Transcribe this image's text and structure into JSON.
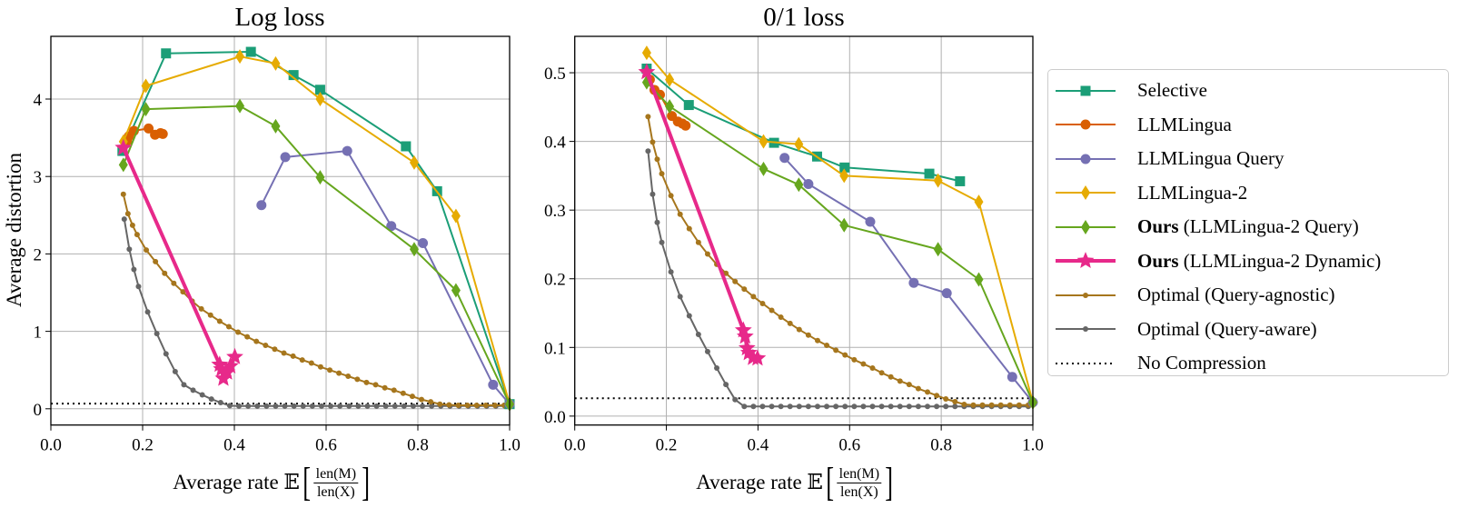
{
  "figure": {
    "ylabel": "Average distortion",
    "xlabel": {
      "prefix": "Average rate 𝔼",
      "numerator": "len(M)",
      "denominator": "len(X)"
    }
  },
  "legend": {
    "placement": "right, outside",
    "items": [
      {
        "key": "selective",
        "label_bold": "",
        "label": "Selective",
        "color": "#1b9e77",
        "marker": "square"
      },
      {
        "key": "llmlingua",
        "label_bold": "",
        "label": "LLMLingua",
        "color": "#d95f02",
        "marker": "circle"
      },
      {
        "key": "llmlingua_query",
        "label_bold": "",
        "label": "LLMLingua Query",
        "color": "#7570b3",
        "marker": "circle"
      },
      {
        "key": "llmlingua2",
        "label_bold": "",
        "label": "LLMLingua-2",
        "color": "#e6ab02",
        "marker": "diamond"
      },
      {
        "key": "ours_query",
        "label_bold": "Ours",
        "label": " (LLMLingua-2 Query)",
        "color": "#66a61e",
        "marker": "diamond"
      },
      {
        "key": "ours_dynamic",
        "label_bold": "Ours",
        "label": " (LLMLingua-2 Dynamic)",
        "color": "#e7298a",
        "marker": "star"
      },
      {
        "key": "opt_agnostic",
        "label_bold": "",
        "label": "Optimal (Query-agnostic)",
        "color": "#a6761d",
        "marker": "dot"
      },
      {
        "key": "opt_aware",
        "label_bold": "",
        "label": "Optimal (Query-aware)",
        "color": "#666666",
        "marker": "dot"
      },
      {
        "key": "no_compression",
        "label_bold": "",
        "label": "No Compression",
        "color": "#000000",
        "marker": "dotted-line"
      }
    ]
  },
  "chart_data": [
    {
      "type": "line",
      "title": "Log loss",
      "xlabel": "Average rate 𝔼[len(M)/len(X)]",
      "ylabel": "Average distortion",
      "xlim": [
        0,
        1
      ],
      "ylim": [
        -0.21,
        4.81
      ],
      "grid": true,
      "xticks": [
        "0.0",
        "0.2",
        "0.4",
        "0.6",
        "0.8",
        "1.0"
      ],
      "yticks": [
        "0",
        "1",
        "2",
        "3",
        "4"
      ],
      "no_compression": 0.067,
      "series": {
        "selective": [
          [
            0.156,
            3.33
          ],
          [
            0.251,
            4.59
          ],
          [
            0.436,
            4.61
          ],
          [
            0.529,
            4.31
          ],
          [
            0.587,
            4.12
          ],
          [
            0.774,
            3.39
          ],
          [
            0.842,
            2.81
          ],
          [
            1.0,
            0.06
          ]
        ],
        "llmlingua": [
          [
            0.166,
            3.46
          ],
          [
            0.17,
            3.52
          ],
          [
            0.181,
            3.59
          ],
          [
            0.213,
            3.62
          ],
          [
            0.227,
            3.54
          ],
          [
            0.239,
            3.56
          ],
          [
            0.244,
            3.55
          ]
        ],
        "llmlingua_query": [
          [
            0.459,
            2.63
          ],
          [
            0.511,
            3.25
          ],
          [
            0.646,
            3.33
          ],
          [
            0.742,
            2.36
          ],
          [
            0.811,
            2.14
          ],
          [
            0.964,
            0.31
          ],
          [
            1.0,
            0.06
          ]
        ],
        "llmlingua2": [
          [
            0.158,
            3.45
          ],
          [
            0.207,
            4.17
          ],
          [
            0.412,
            4.55
          ],
          [
            0.49,
            4.46
          ],
          [
            0.587,
            4.0
          ],
          [
            0.792,
            3.18
          ],
          [
            0.883,
            2.49
          ],
          [
            1.0,
            0.06
          ]
        ],
        "ours_query": [
          [
            0.158,
            3.15
          ],
          [
            0.207,
            3.87
          ],
          [
            0.412,
            3.91
          ],
          [
            0.49,
            3.65
          ],
          [
            0.587,
            2.99
          ],
          [
            0.792,
            2.06
          ],
          [
            0.883,
            1.53
          ],
          [
            1.0,
            0.06
          ]
        ],
        "ours_dynamic": [
          [
            0.158,
            3.37
          ],
          [
            0.368,
            0.57
          ],
          [
            0.372,
            0.51
          ],
          [
            0.376,
            0.39
          ],
          [
            0.384,
            0.47
          ],
          [
            0.391,
            0.55
          ],
          [
            0.401,
            0.67
          ]
        ],
        "opt_agnostic": [
          [
            0.158,
            2.77
          ],
          [
            0.168,
            2.52
          ],
          [
            0.178,
            2.37
          ],
          [
            0.188,
            2.25
          ],
          [
            0.208,
            2.05
          ],
          [
            0.228,
            1.9
          ],
          [
            0.248,
            1.75
          ],
          [
            0.268,
            1.62
          ],
          [
            0.288,
            1.51
          ],
          [
            0.308,
            1.39
          ],
          [
            0.328,
            1.29
          ],
          [
            0.348,
            1.21
          ],
          [
            0.368,
            1.13
          ],
          [
            0.388,
            1.06
          ],
          [
            0.408,
            0.99
          ],
          [
            0.428,
            0.93
          ],
          [
            0.448,
            0.87
          ],
          [
            0.468,
            0.82
          ],
          [
            0.488,
            0.77
          ],
          [
            0.508,
            0.72
          ],
          [
            0.528,
            0.68
          ],
          [
            0.548,
            0.63
          ],
          [
            0.568,
            0.59
          ],
          [
            0.588,
            0.54
          ],
          [
            0.608,
            0.5
          ],
          [
            0.628,
            0.46
          ],
          [
            0.648,
            0.42
          ],
          [
            0.668,
            0.38
          ],
          [
            0.688,
            0.34
          ],
          [
            0.708,
            0.31
          ],
          [
            0.728,
            0.27
          ],
          [
            0.748,
            0.24
          ],
          [
            0.768,
            0.2
          ],
          [
            0.788,
            0.16
          ],
          [
            0.808,
            0.12
          ],
          [
            0.828,
            0.09
          ],
          [
            0.848,
            0.06
          ],
          [
            0.868,
            0.05
          ],
          [
            0.888,
            0.045
          ],
          [
            0.908,
            0.045
          ],
          [
            0.928,
            0.045
          ],
          [
            0.948,
            0.045
          ],
          [
            0.968,
            0.045
          ],
          [
            0.988,
            0.045
          ],
          [
            1.0,
            0.045
          ]
        ],
        "opt_aware": [
          [
            0.16,
            2.45
          ],
          [
            0.171,
            2.06
          ],
          [
            0.181,
            1.8
          ],
          [
            0.191,
            1.58
          ],
          [
            0.211,
            1.25
          ],
          [
            0.231,
            0.97
          ],
          [
            0.251,
            0.71
          ],
          [
            0.271,
            0.48
          ],
          [
            0.29,
            0.31
          ],
          [
            0.31,
            0.24
          ],
          [
            0.33,
            0.18
          ],
          [
            0.35,
            0.125
          ],
          [
            0.37,
            0.08
          ],
          [
            0.39,
            0.04
          ],
          [
            0.41,
            0.035
          ],
          [
            0.43,
            0.035
          ],
          [
            0.45,
            0.035
          ],
          [
            0.47,
            0.035
          ],
          [
            0.49,
            0.035
          ],
          [
            0.51,
            0.035
          ],
          [
            0.53,
            0.035
          ],
          [
            0.55,
            0.035
          ],
          [
            0.57,
            0.035
          ],
          [
            0.59,
            0.035
          ],
          [
            0.61,
            0.035
          ],
          [
            0.63,
            0.035
          ],
          [
            0.65,
            0.035
          ],
          [
            0.67,
            0.035
          ],
          [
            0.69,
            0.035
          ],
          [
            0.71,
            0.035
          ],
          [
            0.73,
            0.035
          ],
          [
            0.75,
            0.035
          ],
          [
            0.77,
            0.035
          ],
          [
            0.79,
            0.035
          ],
          [
            0.81,
            0.035
          ],
          [
            0.83,
            0.035
          ],
          [
            0.85,
            0.035
          ],
          [
            0.87,
            0.035
          ],
          [
            0.89,
            0.035
          ],
          [
            0.91,
            0.035
          ],
          [
            0.93,
            0.035
          ],
          [
            0.95,
            0.035
          ],
          [
            0.97,
            0.035
          ],
          [
            0.99,
            0.035
          ]
        ]
      }
    },
    {
      "type": "line",
      "title": "0/1 loss",
      "xlabel": "Average rate 𝔼[len(M)/len(X)]",
      "ylabel": "",
      "xlim": [
        0,
        1
      ],
      "ylim": [
        -0.013,
        0.553
      ],
      "grid": true,
      "xticks": [
        "0.0",
        "0.2",
        "0.4",
        "0.6",
        "0.8",
        "1.0"
      ],
      "yticks": [
        "0.0",
        "0.1",
        "0.2",
        "0.3",
        "0.4",
        "0.5"
      ],
      "no_compression": 0.026,
      "series": {
        "selective": [
          [
            0.157,
            0.506
          ],
          [
            0.249,
            0.453
          ],
          [
            0.435,
            0.398
          ],
          [
            0.529,
            0.378
          ],
          [
            0.589,
            0.362
          ],
          [
            0.774,
            0.353
          ],
          [
            0.841,
            0.342
          ]
        ],
        "llmlingua": [
          [
            0.164,
            0.49
          ],
          [
            0.174,
            0.475
          ],
          [
            0.186,
            0.468
          ],
          [
            0.212,
            0.437
          ],
          [
            0.225,
            0.429
          ],
          [
            0.235,
            0.426
          ],
          [
            0.242,
            0.423
          ]
        ],
        "llmlingua_query": [
          [
            0.458,
            0.376
          ],
          [
            0.51,
            0.338
          ],
          [
            0.645,
            0.283
          ],
          [
            0.74,
            0.194
          ],
          [
            0.812,
            0.179
          ],
          [
            0.955,
            0.057
          ],
          [
            1.0,
            0.02
          ]
        ],
        "llmlingua2": [
          [
            0.157,
            0.529
          ],
          [
            0.207,
            0.49
          ],
          [
            0.412,
            0.4
          ],
          [
            0.489,
            0.396
          ],
          [
            0.588,
            0.35
          ],
          [
            0.793,
            0.343
          ],
          [
            0.882,
            0.312
          ],
          [
            1.0,
            0.02
          ]
        ],
        "ours_query": [
          [
            0.157,
            0.486
          ],
          [
            0.207,
            0.451
          ],
          [
            0.412,
            0.36
          ],
          [
            0.489,
            0.337
          ],
          [
            0.588,
            0.278
          ],
          [
            0.793,
            0.243
          ],
          [
            0.882,
            0.199
          ],
          [
            1.0,
            0.02
          ]
        ],
        "ours_dynamic": [
          [
            0.157,
            0.501
          ],
          [
            0.368,
            0.125
          ],
          [
            0.372,
            0.116
          ],
          [
            0.376,
            0.099
          ],
          [
            0.38,
            0.092
          ],
          [
            0.389,
            0.085
          ],
          [
            0.399,
            0.084
          ]
        ],
        "opt_agnostic": [
          [
            0.16,
            0.436
          ],
          [
            0.17,
            0.399
          ],
          [
            0.18,
            0.374
          ],
          [
            0.19,
            0.353
          ],
          [
            0.21,
            0.321
          ],
          [
            0.23,
            0.294
          ],
          [
            0.25,
            0.273
          ],
          [
            0.27,
            0.253
          ],
          [
            0.29,
            0.236
          ],
          [
            0.31,
            0.221
          ],
          [
            0.33,
            0.208
          ],
          [
            0.35,
            0.196
          ],
          [
            0.37,
            0.185
          ],
          [
            0.39,
            0.174
          ],
          [
            0.41,
            0.164
          ],
          [
            0.43,
            0.154
          ],
          [
            0.45,
            0.144
          ],
          [
            0.47,
            0.135
          ],
          [
            0.49,
            0.126
          ],
          [
            0.51,
            0.118
          ],
          [
            0.53,
            0.11
          ],
          [
            0.55,
            0.103
          ],
          [
            0.57,
            0.096
          ],
          [
            0.59,
            0.089
          ],
          [
            0.61,
            0.082
          ],
          [
            0.63,
            0.076
          ],
          [
            0.65,
            0.07
          ],
          [
            0.67,
            0.063
          ],
          [
            0.69,
            0.057
          ],
          [
            0.71,
            0.051
          ],
          [
            0.73,
            0.046
          ],
          [
            0.75,
            0.04
          ],
          [
            0.77,
            0.035
          ],
          [
            0.79,
            0.03
          ],
          [
            0.81,
            0.025
          ],
          [
            0.83,
            0.021
          ],
          [
            0.85,
            0.017
          ],
          [
            0.87,
            0.016
          ],
          [
            0.89,
            0.016
          ],
          [
            0.91,
            0.016
          ],
          [
            0.93,
            0.016
          ],
          [
            0.95,
            0.016
          ],
          [
            0.97,
            0.016
          ],
          [
            0.99,
            0.016
          ]
        ],
        "opt_aware": [
          [
            0.16,
            0.386
          ],
          [
            0.17,
            0.323
          ],
          [
            0.18,
            0.282
          ],
          [
            0.19,
            0.253
          ],
          [
            0.21,
            0.21
          ],
          [
            0.23,
            0.174
          ],
          [
            0.25,
            0.146
          ],
          [
            0.27,
            0.119
          ],
          [
            0.29,
            0.094
          ],
          [
            0.31,
            0.07
          ],
          [
            0.33,
            0.046
          ],
          [
            0.35,
            0.024
          ],
          [
            0.37,
            0.014
          ],
          [
            0.39,
            0.014
          ],
          [
            0.41,
            0.014
          ],
          [
            0.43,
            0.014
          ],
          [
            0.45,
            0.014
          ],
          [
            0.47,
            0.014
          ],
          [
            0.49,
            0.014
          ],
          [
            0.51,
            0.014
          ],
          [
            0.53,
            0.014
          ],
          [
            0.55,
            0.014
          ],
          [
            0.57,
            0.014
          ],
          [
            0.59,
            0.014
          ],
          [
            0.61,
            0.014
          ],
          [
            0.63,
            0.014
          ],
          [
            0.65,
            0.014
          ],
          [
            0.67,
            0.014
          ],
          [
            0.69,
            0.014
          ],
          [
            0.71,
            0.014
          ],
          [
            0.73,
            0.014
          ],
          [
            0.75,
            0.014
          ],
          [
            0.77,
            0.014
          ],
          [
            0.79,
            0.014
          ],
          [
            0.81,
            0.014
          ],
          [
            0.83,
            0.014
          ],
          [
            0.85,
            0.014
          ],
          [
            0.87,
            0.014
          ],
          [
            0.89,
            0.014
          ],
          [
            0.91,
            0.014
          ],
          [
            0.93,
            0.014
          ],
          [
            0.95,
            0.014
          ],
          [
            0.97,
            0.014
          ],
          [
            0.99,
            0.014
          ]
        ]
      }
    }
  ]
}
